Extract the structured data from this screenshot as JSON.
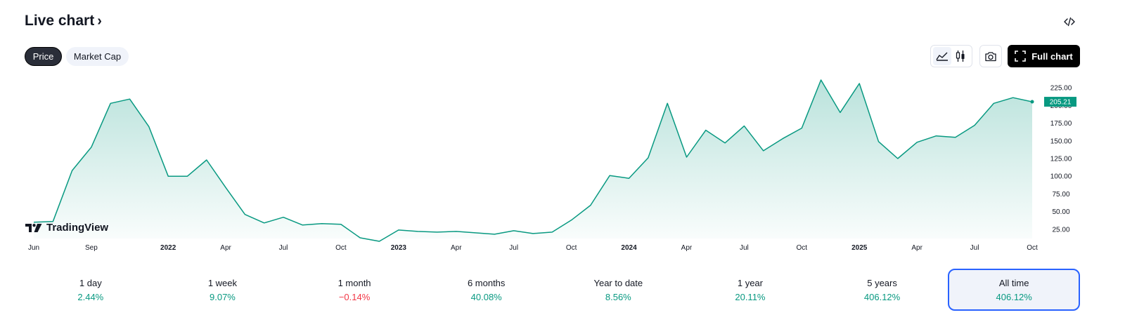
{
  "header": {
    "title": "Live chart",
    "chevron": "›",
    "embed_icon": "code-icon"
  },
  "tabs": [
    {
      "label": "Price",
      "active": true
    },
    {
      "label": "Market Cap",
      "active": false
    }
  ],
  "toolbar": {
    "chart_type_icons": [
      "area-chart-icon",
      "candles-icon"
    ],
    "camera_icon": "camera-icon",
    "full_chart_label": "Full chart",
    "full_chart_icon": "fullscreen-icon"
  },
  "logo_text": "TradingView",
  "chart_data": {
    "type": "area",
    "color": "#089981",
    "x": [
      "2021-06",
      "2021-07",
      "2021-08",
      "2021-09",
      "2021-10",
      "2021-11",
      "2021-12",
      "2022-01",
      "2022-02",
      "2022-03",
      "2022-04",
      "2022-05",
      "2022-06",
      "2022-07",
      "2022-08",
      "2022-09",
      "2022-10",
      "2022-11",
      "2022-12",
      "2023-01",
      "2023-02",
      "2023-03",
      "2023-04",
      "2023-05",
      "2023-06",
      "2023-07",
      "2023-08",
      "2023-09",
      "2023-10",
      "2023-11",
      "2023-12",
      "2024-01",
      "2024-02",
      "2024-03",
      "2024-04",
      "2024-05",
      "2024-06",
      "2024-07",
      "2024-08",
      "2024-09",
      "2024-10",
      "2024-11",
      "2024-12",
      "2025-01",
      "2025-02",
      "2025-03",
      "2025-04",
      "2025-05",
      "2025-06",
      "2025-07",
      "2025-08",
      "2025-09",
      "2025-10"
    ],
    "y": [
      35,
      36,
      108,
      141,
      203,
      209,
      170,
      100,
      100,
      123,
      84,
      46,
      34,
      42,
      31,
      33,
      32,
      13,
      8,
      24,
      22,
      21,
      22,
      20,
      18,
      23,
      19,
      21,
      38,
      59,
      101,
      97,
      126,
      203,
      127,
      165,
      147,
      171,
      136,
      153,
      168,
      236,
      190,
      231,
      149,
      125,
      148,
      157,
      155,
      172,
      203,
      211,
      205.21
    ],
    "last_value": "205.21",
    "ylim": [
      12,
      235
    ],
    "y_ticks": [
      "25.00",
      "50.00",
      "75.00",
      "100.00",
      "125.00",
      "150.00",
      "175.00",
      "200.00",
      "225.00"
    ],
    "x_ticks": [
      {
        "label": "Jun",
        "at": "2021-06",
        "bold": false
      },
      {
        "label": "Sep",
        "at": "2021-09",
        "bold": false
      },
      {
        "label": "2022",
        "at": "2022-01",
        "bold": true
      },
      {
        "label": "Apr",
        "at": "2022-04",
        "bold": false
      },
      {
        "label": "Jul",
        "at": "2022-07",
        "bold": false
      },
      {
        "label": "Oct",
        "at": "2022-10",
        "bold": false
      },
      {
        "label": "2023",
        "at": "2023-01",
        "bold": true
      },
      {
        "label": "Apr",
        "at": "2023-04",
        "bold": false
      },
      {
        "label": "Jul",
        "at": "2023-07",
        "bold": false
      },
      {
        "label": "Oct",
        "at": "2023-10",
        "bold": false
      },
      {
        "label": "2024",
        "at": "2024-01",
        "bold": true
      },
      {
        "label": "Apr",
        "at": "2024-04",
        "bold": false
      },
      {
        "label": "Jul",
        "at": "2024-07",
        "bold": false
      },
      {
        "label": "Oct",
        "at": "2024-10",
        "bold": false
      },
      {
        "label": "2025",
        "at": "2025-01",
        "bold": true
      },
      {
        "label": "Apr",
        "at": "2025-04",
        "bold": false
      },
      {
        "label": "Jul",
        "at": "2025-07",
        "bold": false
      },
      {
        "label": "Oct",
        "at": "2025-10",
        "bold": false
      }
    ],
    "title": "",
    "xlabel": "",
    "ylabel": "",
    "grid": false,
    "legend": "none"
  },
  "periods": [
    {
      "label": "1 day",
      "value": "2.44%",
      "trend": "up",
      "active": false
    },
    {
      "label": "1 week",
      "value": "9.07%",
      "trend": "up",
      "active": false
    },
    {
      "label": "1 month",
      "value": "−0.14%",
      "trend": "down",
      "active": false
    },
    {
      "label": "6 months",
      "value": "40.08%",
      "trend": "up",
      "active": false
    },
    {
      "label": "Year to date",
      "value": "8.56%",
      "trend": "up",
      "active": false
    },
    {
      "label": "1 year",
      "value": "20.11%",
      "trend": "up",
      "active": false
    },
    {
      "label": "5 years",
      "value": "406.12%",
      "trend": "up",
      "active": false
    },
    {
      "label": "All time",
      "value": "406.12%",
      "trend": "up",
      "active": true
    }
  ]
}
